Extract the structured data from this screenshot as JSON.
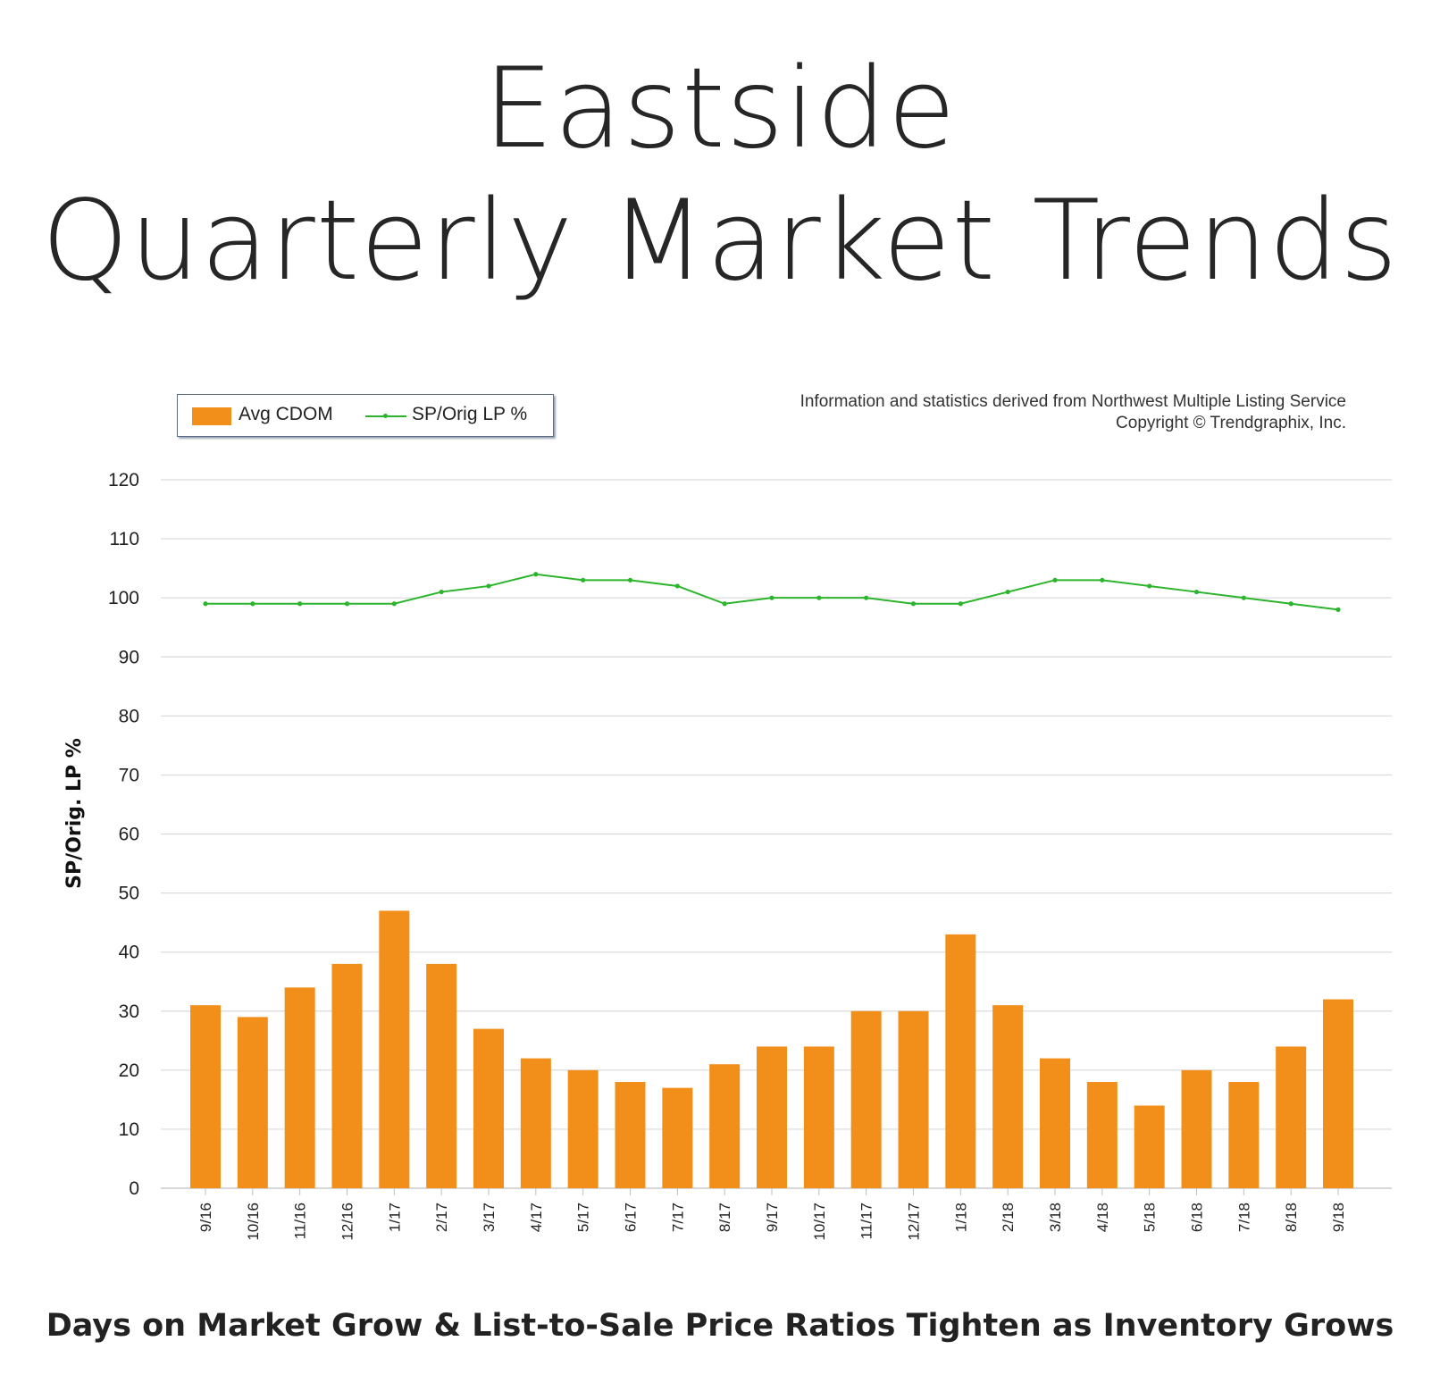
{
  "title": {
    "line1": "Eastside",
    "line2": "Quarterly Market Trends"
  },
  "subtitle": "Days on Market Grow & List-to-Sale Price Ratios Tighten as Inventory Grows",
  "source": {
    "line1": "Information and statistics derived from Northwest Multiple Listing Service",
    "line2": "Copyright © Trendgraphix, Inc."
  },
  "legend": {
    "bar_label": "Avg CDOM",
    "line_label": "SP/Orig LP %"
  },
  "colors": {
    "bar": "#f28f1a",
    "line": "#2cb52c",
    "grid": "#d9d9d9"
  },
  "chart_data": {
    "type": "bar",
    "ylabel": "SP/Orig. LP %",
    "ylim": [
      0,
      120
    ],
    "yticks": [
      0,
      10,
      20,
      30,
      40,
      50,
      60,
      70,
      80,
      90,
      100,
      110,
      120
    ],
    "grid": true,
    "legend_position": "top-left",
    "categories": [
      "9/16",
      "10/16",
      "11/16",
      "12/16",
      "1/17",
      "2/17",
      "3/17",
      "4/17",
      "5/17",
      "6/17",
      "7/17",
      "8/17",
      "9/17",
      "10/17",
      "11/17",
      "12/17",
      "1/18",
      "2/18",
      "3/18",
      "4/18",
      "5/18",
      "6/18",
      "7/18",
      "8/18",
      "9/18"
    ],
    "series": [
      {
        "name": "Avg CDOM",
        "type": "bar",
        "values": [
          31,
          29,
          34,
          38,
          47,
          38,
          27,
          22,
          20,
          18,
          17,
          21,
          24,
          24,
          30,
          30,
          43,
          31,
          22,
          18,
          14,
          20,
          18,
          24,
          32
        ]
      },
      {
        "name": "SP/Orig LP %",
        "type": "line",
        "values": [
          99,
          99,
          99,
          99,
          99,
          101,
          102,
          104,
          103,
          103,
          102,
          99,
          100,
          100,
          100,
          99,
          99,
          101,
          103,
          103,
          102,
          101,
          100,
          99,
          98
        ]
      }
    ]
  }
}
